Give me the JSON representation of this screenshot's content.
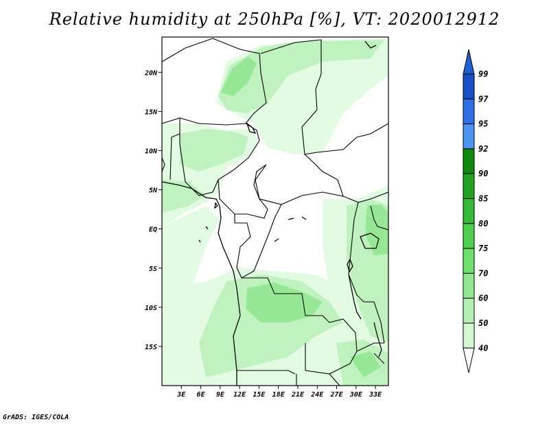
{
  "title": "Relative humidity at 250hPa [%], VT: 2020012912",
  "credit": "GrADS: IGES/COLA",
  "map": {
    "lat_labels": [
      "20N",
      "15N",
      "10N",
      "5N",
      "EQ",
      "5S",
      "10S",
      "15S"
    ],
    "lat_values": [
      20,
      15,
      10,
      5,
      0,
      -5,
      -10,
      -15
    ],
    "lon_labels": [
      "3E",
      "6E",
      "9E",
      "12E",
      "15E",
      "18E",
      "21E",
      "24E",
      "27E",
      "30E",
      "33E"
    ],
    "lon_values": [
      3,
      6,
      9,
      12,
      15,
      18,
      21,
      24,
      27,
      30,
      33
    ],
    "lon_range": [
      0,
      35
    ],
    "lat_range": [
      -20,
      24.5
    ]
  },
  "colorbar": {
    "labels": [
      "99",
      "97",
      "95",
      "92",
      "90",
      "85",
      "80",
      "75",
      "70",
      "60",
      "50",
      "40"
    ],
    "colors": [
      "#1a4fc8",
      "#2e6fe6",
      "#4a95f2",
      "#0f8a0f",
      "#22a322",
      "#35bb35",
      "#4fd14f",
      "#6de06d",
      "#8fe88f",
      "#b4f0b4",
      "#d4f7d4",
      "#f0fdf0"
    ],
    "top_color": "#1e5fd0",
    "bottom_color": "#ffffff"
  },
  "palette": {
    "light": "#e3fae3",
    "mid": "#bff2bf",
    "strong": "#96e896"
  }
}
